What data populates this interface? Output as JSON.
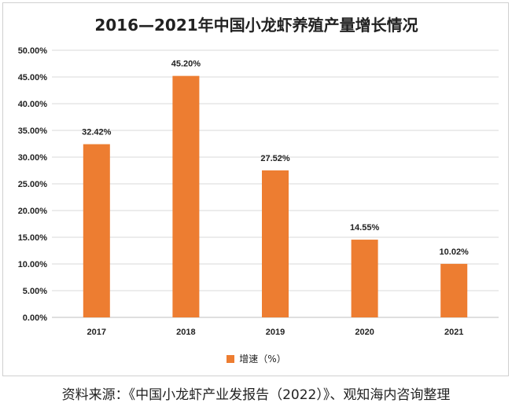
{
  "chart_data": {
    "type": "bar",
    "title": "2016—2021年中国小龙虾养殖产量增长情况",
    "categories": [
      "2017",
      "2018",
      "2019",
      "2020",
      "2021"
    ],
    "series": [
      {
        "name": "增速（%）",
        "values": [
          32.42,
          45.2,
          27.52,
          14.55,
          10.02
        ],
        "color": "#ed7d31"
      }
    ],
    "data_labels": [
      "32.42%",
      "45.20%",
      "27.52%",
      "14.55%",
      "10.02%"
    ],
    "yticks": [
      "0.00%",
      "5.00%",
      "10.00%",
      "15.00%",
      "20.00%",
      "25.00%",
      "30.00%",
      "35.00%",
      "40.00%",
      "45.00%",
      "50.00%"
    ],
    "ylim": [
      0,
      50
    ],
    "grid": true,
    "legend_position": "bottom"
  },
  "source_note": "资料来源：《中国小龙虾产业发报告（2022）》、观知海内咨询整理",
  "colors": {
    "bar": "#ed7d31",
    "grid": "#d9d9d9",
    "axis": "#bfbfbf"
  }
}
